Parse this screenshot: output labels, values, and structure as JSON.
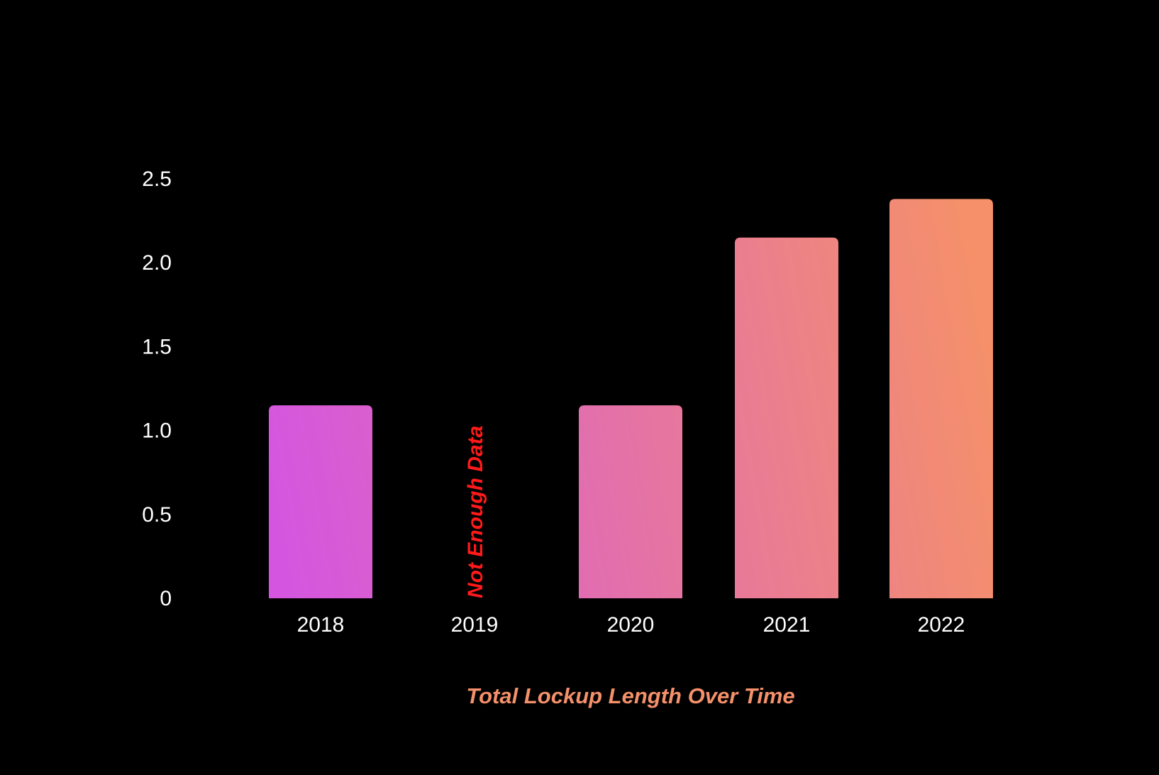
{
  "chart_data": {
    "type": "bar",
    "title": "Total Lockup Length Over Time",
    "xlabel": "",
    "ylabel": "",
    "categories": [
      "2018",
      "2019",
      "2020",
      "2021",
      "2022"
    ],
    "values": [
      1.15,
      null,
      1.15,
      2.15,
      2.38
    ],
    "y_ticks": [
      "0",
      "0.5",
      "1.0",
      "1.5",
      "2.0",
      "2.5"
    ],
    "ylim": [
      0,
      2.5
    ],
    "grid": false,
    "legend": "none",
    "annotations": [
      {
        "category": "2019",
        "text": "Not Enough Data",
        "orientation": "vertical"
      }
    ],
    "colors": {
      "background": "#000000",
      "gradient_start": "#d456e0",
      "gradient_end": "#f5906a",
      "note": "#ff1a1a",
      "title": "#f4906a",
      "text": "#ffffff"
    }
  }
}
